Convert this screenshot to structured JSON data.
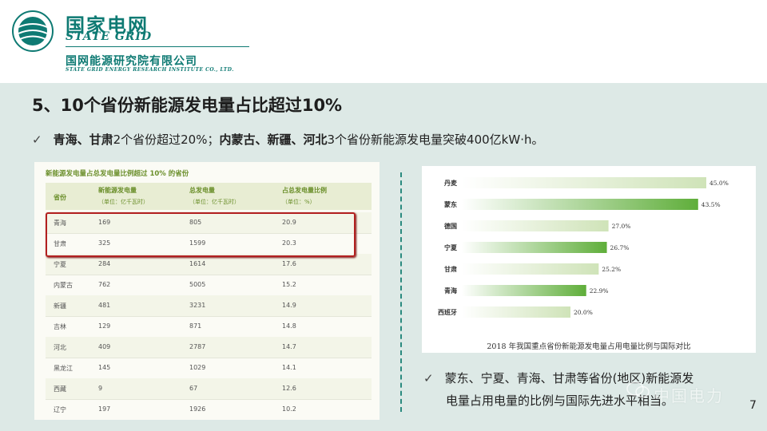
{
  "header": {
    "logo_cn": "国家电网",
    "logo_en": "STATE GRID",
    "institute_cn": "国网能源研究院有限公司",
    "institute_en": "STATE GRID ENERGY RESEARCH INSTITUTE CO., LTD."
  },
  "slide": {
    "title": "5、10个省份新能源发电量占比超过10%",
    "bullet1": {
      "check": "✓",
      "part1_bold": "青海、甘肃",
      "part2": "2个省份超过20%；",
      "part3_bold": "内蒙古、新疆、河北",
      "part4": "3个省份新能源发电量突破400亿kW·h。"
    },
    "bullet2": {
      "check": "✓",
      "line1": "蒙东、宁夏、青海、甘肃等省份(地区)新能源发",
      "line2": "电量占用电量的比例与国际先进水平相当。"
    },
    "page_number": "7",
    "watermark": "中国电力"
  },
  "table": {
    "title": "新能源发电量占总发电量比例超过 10% 的省份",
    "headers": [
      {
        "label": "省份",
        "sub": ""
      },
      {
        "label": "新能源发电量",
        "sub": "（单位：亿千瓦时）"
      },
      {
        "label": "总发电量",
        "sub": "（单位：亿千瓦时）"
      },
      {
        "label": "占总发电量比例",
        "sub": "（单位：%）"
      }
    ],
    "rows": [
      [
        "青海",
        "169",
        "805",
        "20.9"
      ],
      [
        "甘肃",
        "325",
        "1599",
        "20.3"
      ],
      [
        "宁夏",
        "284",
        "1614",
        "17.6"
      ],
      [
        "内蒙古",
        "762",
        "5005",
        "15.2"
      ],
      [
        "新疆",
        "481",
        "3231",
        "14.9"
      ],
      [
        "吉林",
        "129",
        "871",
        "14.8"
      ],
      [
        "河北",
        "409",
        "2787",
        "14.7"
      ],
      [
        "黑龙江",
        "145",
        "1029",
        "14.1"
      ],
      [
        "西藏",
        "9",
        "67",
        "12.6"
      ],
      [
        "辽宁",
        "197",
        "1926",
        "10.2"
      ]
    ]
  },
  "colors": {
    "brand": "#0e7a73",
    "slide_bg": "#dde9e6",
    "highlight": "#b22020",
    "bar_dark": "#5fae3a",
    "bar_light": "#f3f8ec"
  },
  "chart_data": {
    "type": "bar",
    "orientation": "horizontal",
    "title": "2018 年我国重点省份新能源发电量占用电量比例与国际对比",
    "categories": [
      "丹麦",
      "蒙东",
      "德国",
      "宁夏",
      "甘肃",
      "青海",
      "西班牙"
    ],
    "values": [
      45.0,
      43.5,
      27.0,
      26.7,
      25.2,
      22.9,
      20.0
    ],
    "value_labels": [
      "45.0%",
      "43.5%",
      "27.0%",
      "26.7%",
      "25.2%",
      "22.9%",
      "20.0%"
    ],
    "highlighted": [
      false,
      true,
      false,
      true,
      false,
      true,
      false
    ],
    "xlim": [
      0,
      50
    ],
    "grid": false,
    "legend": "none"
  }
}
